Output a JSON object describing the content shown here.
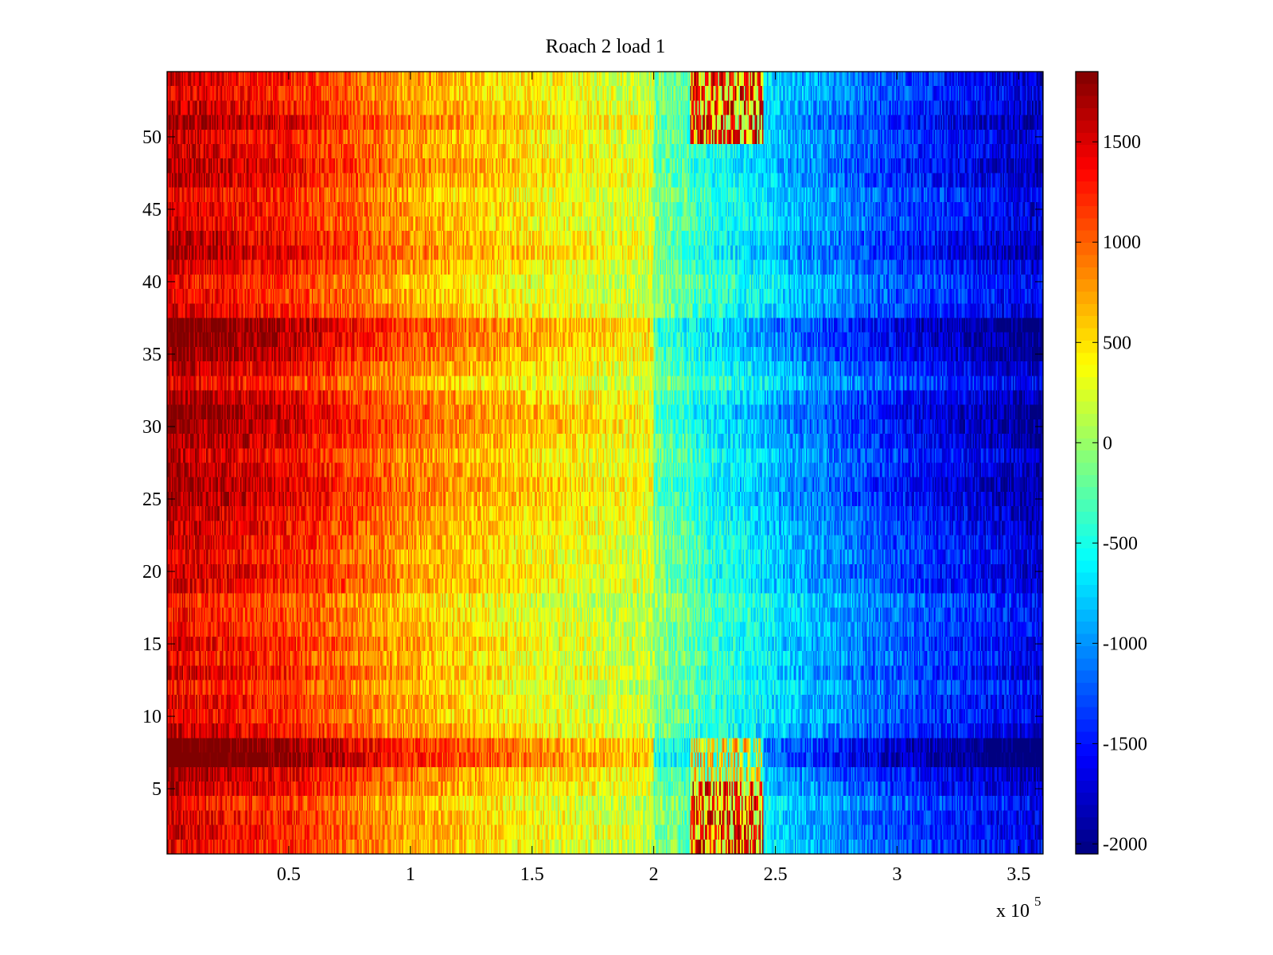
{
  "chart_data": {
    "type": "heatmap",
    "title": "Roach 2 load 1",
    "xlabel": "",
    "ylabel": "",
    "x_exponent_label": "x 10",
    "x_exponent_power": "5",
    "xlim": [
      0,
      3.6
    ],
    "ylim": [
      0.5,
      54.5
    ],
    "x_ticks": [
      0.5,
      1,
      1.5,
      2,
      2.5,
      3,
      3.5
    ],
    "x_tick_labels": [
      "0.5",
      "1",
      "1.5",
      "2",
      "2.5",
      "3",
      "3.5"
    ],
    "y_ticks": [
      5,
      10,
      15,
      20,
      25,
      30,
      35,
      40,
      45,
      50
    ],
    "y_tick_labels": [
      "5",
      "10",
      "15",
      "20",
      "25",
      "30",
      "35",
      "40",
      "45",
      "50"
    ],
    "colorbar": {
      "colormap": "jet",
      "clim": [
        -2050,
        1850
      ],
      "ticks": [
        -2000,
        -1500,
        -1000,
        -500,
        0,
        500,
        1000,
        1500
      ],
      "tick_labels": [
        "-2000",
        "-1500",
        "-1000",
        "-500",
        "0",
        "500",
        "1000",
        "1500"
      ]
    },
    "rows": 54,
    "row_offsets": [
      150,
      250,
      200,
      100,
      350,
      450,
      900,
      800,
      300,
      150,
      200,
      50,
      250,
      100,
      200,
      100,
      50,
      0,
      250,
      300,
      200,
      250,
      300,
      350,
      450,
      500,
      400,
      300,
      450,
      550,
      600,
      450,
      150,
      350,
      550,
      650,
      700,
      250,
      150,
      100,
      250,
      450,
      350,
      200,
      250,
      150,
      350,
      400,
      300,
      250,
      450,
      300,
      200,
      250
    ],
    "column_profile": {
      "x": [
        0.0,
        0.5,
        1.0,
        1.5,
        2.0,
        2.1,
        2.2,
        2.45,
        2.55,
        3.0,
        3.6
      ],
      "value": [
        1300,
        1050,
        550,
        250,
        50,
        -50,
        -250,
        -500,
        -650,
        -1100,
        -1500
      ]
    },
    "noise_amplitude": 320,
    "hot_regions": [
      {
        "x_range": [
          2.15,
          2.45
        ],
        "y_range": [
          0.5,
          5.5
        ],
        "value": 1500
      },
      {
        "x_range": [
          2.15,
          2.45
        ],
        "y_range": [
          5.5,
          8.5
        ],
        "value": 700
      },
      {
        "x_range": [
          2.15,
          2.45
        ],
        "y_range": [
          49.5,
          54.5
        ],
        "value": 1500
      }
    ]
  }
}
